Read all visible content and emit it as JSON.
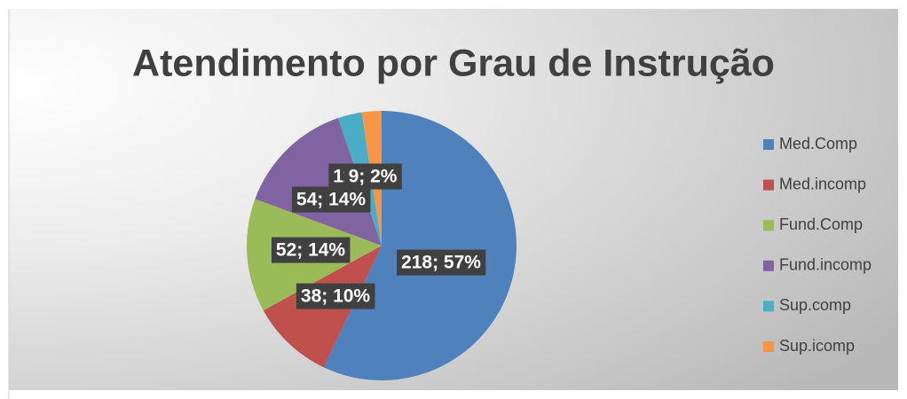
{
  "chart_data": {
    "type": "pie",
    "title": "Atendimento por Grau de Instrução",
    "categories": [
      "Med.Comp",
      "Med.incomp",
      "Fund.Comp",
      "Fund.incomp",
      "Sup.comp",
      "Sup.icomp"
    ],
    "values": [
      218,
      38,
      52,
      54,
      11,
      9
    ],
    "value_labels": [
      "218; 57%",
      "38; 10%",
      "52; 14%",
      "54; 14%",
      "11; 3%",
      "9; 2%"
    ],
    "colors": [
      "#4f81bd",
      "#c0504d",
      "#9bbb59",
      "#8064a2",
      "#4bacc6",
      "#f79646"
    ],
    "legend": "right"
  }
}
